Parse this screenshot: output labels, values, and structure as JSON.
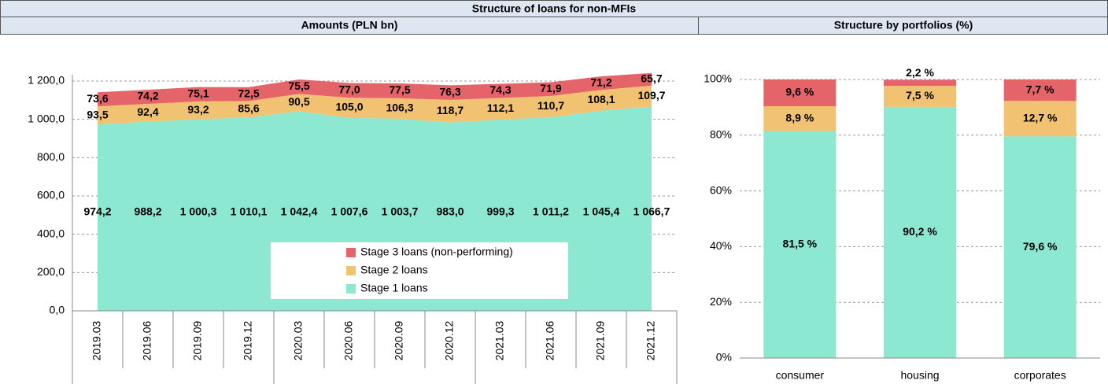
{
  "header": {
    "title": "Structure of loans for non-MFIs"
  },
  "chart_data": [
    {
      "type": "area",
      "title": "Amounts (PLN bn)",
      "stacked": true,
      "categories": [
        "2019.03",
        "2019.06",
        "2019.09",
        "2019.12",
        "2020.03",
        "2020.06",
        "2020.09",
        "2020.12",
        "2021.03",
        "2021.06",
        "2021.09",
        "2021.12"
      ],
      "series": [
        {
          "name": "Stage 1 loans",
          "color": "#8de8d1",
          "values": [
            974.2,
            988.2,
            1000.3,
            1010.1,
            1042.4,
            1007.6,
            1003.7,
            983.0,
            999.3,
            1011.2,
            1045.4,
            1066.7
          ],
          "value_labels": [
            "974,2",
            "988,2",
            "1 000,3",
            "1 010,1",
            "1 042,4",
            "1 007,6",
            "1 003,7",
            "983,0",
            "999,3",
            "1 011,2",
            "1 045,4",
            "1 066,7"
          ]
        },
        {
          "name": "Stage 2 loans",
          "color": "#f1c272",
          "values": [
            93.5,
            92.4,
            93.2,
            85.6,
            90.5,
            105.0,
            106.3,
            118.7,
            112.1,
            110.7,
            108.1,
            109.7
          ],
          "value_labels": [
            "93,5",
            "92,4",
            "93,2",
            "85,6",
            "90,5",
            "105,0",
            "106,3",
            "118,7",
            "112,1",
            "110,7",
            "108,1",
            "109,7"
          ]
        },
        {
          "name": "Stage 3 loans (non-performing)",
          "color": "#e4646a",
          "values": [
            73.6,
            74.2,
            75.1,
            72.5,
            75.5,
            77.0,
            77.5,
            76.3,
            74.3,
            71.9,
            71.2,
            65.7
          ],
          "value_labels": [
            "73,6",
            "74,2",
            "75,1",
            "72,5",
            "75,5",
            "77,0",
            "77,5",
            "76,3",
            "74,3",
            "71,9",
            "71,2",
            "65,7"
          ]
        }
      ],
      "ylim": [
        0,
        1200
      ],
      "yticks": [
        {
          "value": 0,
          "label": "0,0"
        },
        {
          "value": 200,
          "label": "200,0"
        },
        {
          "value": 400,
          "label": "400,0"
        },
        {
          "value": 600,
          "label": "600,0"
        },
        {
          "value": 800,
          "label": "800,0"
        },
        {
          "value": 1000,
          "label": "1 000,0"
        },
        {
          "value": 1200,
          "label": "1 200,0"
        }
      ],
      "grid": true,
      "legend": "lower right"
    },
    {
      "type": "bar",
      "title": "Structure by portfolios (%)",
      "stacked": true,
      "categories": [
        "consumer",
        "housing",
        "corporates"
      ],
      "series": [
        {
          "name": "Stage 1 loans",
          "color": "#8de8d1",
          "values": [
            81.5,
            90.2,
            79.6
          ],
          "value_labels": [
            "81,5 %",
            "90,2 %",
            "79,6 %"
          ]
        },
        {
          "name": "Stage 2 loans",
          "color": "#f1c272",
          "values": [
            8.9,
            7.5,
            12.7
          ],
          "value_labels": [
            "8,9 %",
            "7,5 %",
            "12,7 %"
          ]
        },
        {
          "name": "Stage 3 loans (non-performing)",
          "color": "#e4646a",
          "values": [
            9.6,
            2.2,
            7.7
          ],
          "value_labels": [
            "9,6 %",
            "2,2 %",
            "7,7 %"
          ]
        }
      ],
      "ylim": [
        0,
        100
      ],
      "yticks": [
        {
          "value": 0,
          "label": "0%"
        },
        {
          "value": 20,
          "label": "20%"
        },
        {
          "value": 40,
          "label": "40%"
        },
        {
          "value": 60,
          "label": "60%"
        },
        {
          "value": 80,
          "label": "80%"
        },
        {
          "value": 100,
          "label": "100%"
        }
      ],
      "grid": true
    }
  ]
}
